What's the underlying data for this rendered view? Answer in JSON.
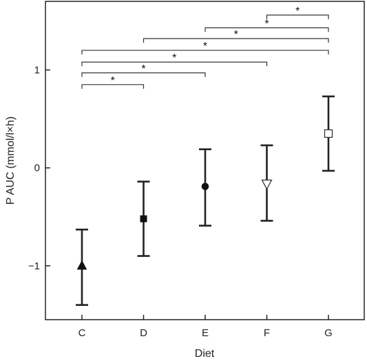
{
  "chart_data": {
    "type": "errorbar",
    "xlabel": "Diet",
    "ylabel": "P AUC (mmol/l×h)",
    "categories": [
      "C",
      "D",
      "E",
      "F",
      "G"
    ],
    "ylim": [
      -1.55,
      1.7
    ],
    "yticks": [
      1,
      0,
      -1
    ],
    "ytick_labels": [
      "1",
      "0",
      "−1"
    ],
    "grid": false,
    "series": [
      {
        "points": [
          {
            "category": "C",
            "value": -1.0,
            "lower": -1.4,
            "upper": -0.63,
            "marker": "triangle-filled"
          },
          {
            "category": "D",
            "value": -0.52,
            "lower": -0.9,
            "upper": -0.14,
            "marker": "square-filled"
          },
          {
            "category": "E",
            "value": -0.19,
            "lower": -0.59,
            "upper": 0.19,
            "marker": "circle-filled"
          },
          {
            "category": "F",
            "value": -0.16,
            "lower": -0.54,
            "upper": 0.23,
            "marker": "triangle-down-open"
          },
          {
            "category": "G",
            "value": 0.35,
            "lower": -0.03,
            "upper": 0.73,
            "marker": "square-open"
          }
        ]
      }
    ],
    "significance": [
      {
        "from": "C",
        "to": "D",
        "level": 0.85,
        "label": "*"
      },
      {
        "from": "C",
        "to": "E",
        "level": 0.97,
        "label": "*"
      },
      {
        "from": "C",
        "to": "F",
        "level": 1.08,
        "label": "*"
      },
      {
        "from": "C",
        "to": "G",
        "level": 1.2,
        "label": "*"
      },
      {
        "from": "D",
        "to": "G",
        "level": 1.32,
        "label": "*"
      },
      {
        "from": "E",
        "to": "G",
        "level": 1.43,
        "label": "*"
      },
      {
        "from": "F",
        "to": "G",
        "level": 1.56,
        "label": "*"
      }
    ]
  }
}
